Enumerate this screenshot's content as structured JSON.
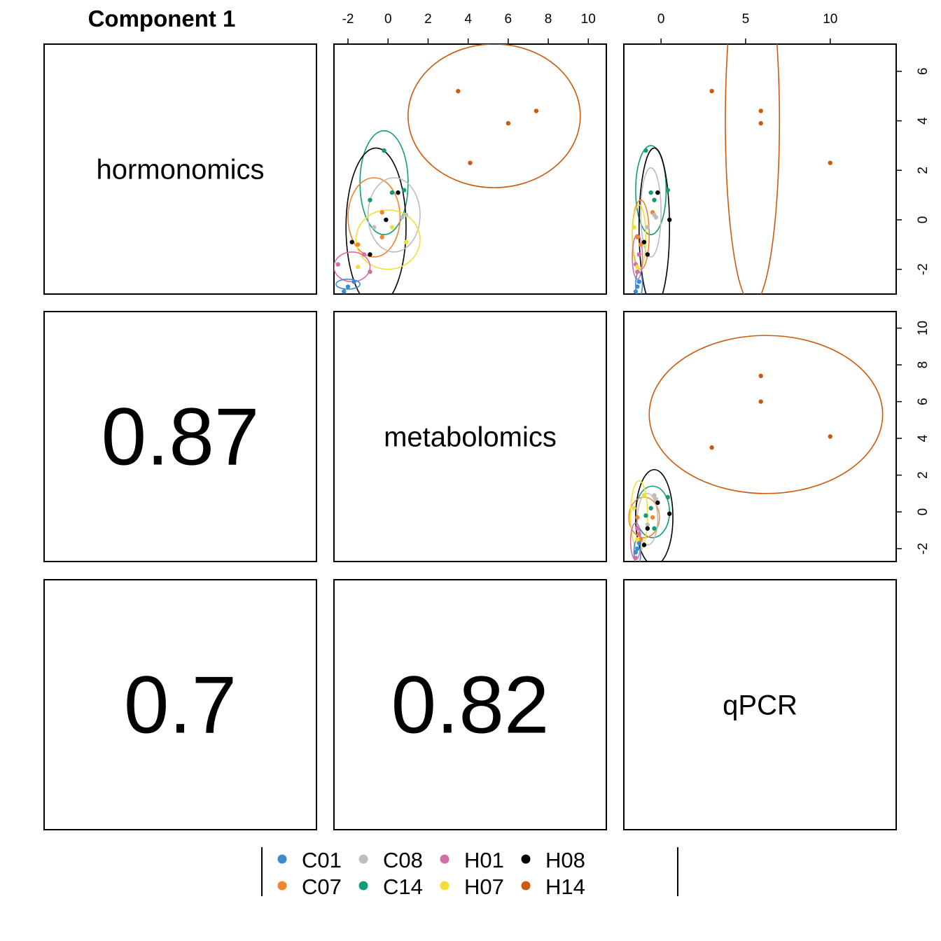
{
  "title": "Component 1",
  "colors": {
    "C01": "#3B8BD0",
    "C07": "#F0852D",
    "C08": "#BDBDBD",
    "C14": "#129C76",
    "H01": "#D36FA5",
    "H07": "#F1E033",
    "H08": "#000000",
    "H14": "#CC5A0E"
  },
  "chart_data": {
    "type": "scatter-matrix",
    "title": "Component 1",
    "variables": [
      "hormonomics",
      "metabolomics",
      "qPCR"
    ],
    "groups": [
      "C01",
      "C07",
      "C08",
      "C14",
      "H01",
      "H07",
      "H08",
      "H14"
    ],
    "correlations": [
      {
        "row": "metabolomics",
        "col": "hormonomics",
        "label": "0.87"
      },
      {
        "row": "qPCR",
        "col": "hormonomics",
        "label": "0.7"
      },
      {
        "row": "qPCR",
        "col": "metabolomics",
        "label": "0.82"
      }
    ],
    "axes": {
      "top_x_ticks": {
        "metabolomics": [
          -2,
          0,
          2,
          4,
          6,
          8,
          10
        ],
        "qPCR": [
          0,
          5,
          10
        ]
      },
      "right_y_ticks": {
        "hormonomics": [
          -2,
          0,
          2,
          4,
          6
        ],
        "metabolomics": [
          -2,
          0,
          2,
          4,
          6,
          8,
          10
        ]
      },
      "limits": {
        "hormonomics": [
          -3.0,
          7.1
        ],
        "metabolomics": [
          -2.7,
          10.9
        ],
        "qPCR": [
          -2.2,
          13.9
        ]
      }
    },
    "points": {
      "C01": [
        {
          "hormonomics": -2.9,
          "metabolomics": -2.2,
          "qPCR": -1.5
        },
        {
          "hormonomics": -2.7,
          "metabolomics": -2.0,
          "qPCR": -1.4
        },
        {
          "hormonomics": -2.5,
          "metabolomics": -1.7,
          "qPCR": -1.3
        }
      ],
      "C07": [
        {
          "hormonomics": -1.0,
          "metabolomics": -1.5,
          "qPCR": -1.2
        },
        {
          "hormonomics": -0.7,
          "metabolomics": -0.3,
          "qPCR": -1.4
        },
        {
          "hormonomics": 0.3,
          "metabolomics": -0.3,
          "qPCR": -0.5
        }
      ],
      "C08": [
        {
          "hormonomics": -0.3,
          "metabolomics": -0.7,
          "qPCR": -0.8
        },
        {
          "hormonomics": 0.1,
          "metabolomics": 0.7,
          "qPCR": -0.3
        },
        {
          "hormonomics": 0.2,
          "metabolomics": 0.9,
          "qPCR": -0.4
        }
      ],
      "C14": [
        {
          "hormonomics": 2.8,
          "metabolomics": -0.2,
          "qPCR": -0.9
        },
        {
          "hormonomics": 1.1,
          "metabolomics": 0.2,
          "qPCR": -0.6
        },
        {
          "hormonomics": 1.2,
          "metabolomics": 0.8,
          "qPCR": 0.4
        },
        {
          "hormonomics": 0.8,
          "metabolomics": -0.9,
          "qPCR": -0.4
        }
      ],
      "H01": [
        {
          "hormonomics": -1.8,
          "metabolomics": -2.5,
          "qPCR": -1.5
        },
        {
          "hormonomics": -1.4,
          "metabolomics": -1.2,
          "qPCR": -1.3
        },
        {
          "hormonomics": -2.1,
          "metabolomics": -0.9,
          "qPCR": -1.4
        }
      ],
      "H07": [
        {
          "hormonomics": -0.9,
          "metabolomics": 0.9,
          "qPCR": -1.0
        },
        {
          "hormonomics": -1.9,
          "metabolomics": -1.5,
          "qPCR": -1.4
        },
        {
          "hormonomics": -0.3,
          "metabolomics": 0.2,
          "qPCR": -1.6
        }
      ],
      "H08": [
        {
          "hormonomics": -0.9,
          "metabolomics": -1.8,
          "qPCR": -1.0
        },
        {
          "hormonomics": -1.4,
          "metabolomics": -0.9,
          "qPCR": -0.8
        },
        {
          "hormonomics": 1.1,
          "metabolomics": 0.5,
          "qPCR": -0.2
        },
        {
          "hormonomics": 0.0,
          "metabolomics": -0.1,
          "qPCR": 0.5
        }
      ],
      "H14": [
        {
          "hormonomics": 5.2,
          "metabolomics": 3.5,
          "qPCR": 3.0
        },
        {
          "hormonomics": 4.4,
          "metabolomics": 7.4,
          "qPCR": 5.9
        },
        {
          "hormonomics": 3.9,
          "metabolomics": 6.0,
          "qPCR": 5.9
        },
        {
          "hormonomics": 2.3,
          "metabolomics": 4.1,
          "qPCR": 10.0
        }
      ]
    },
    "ellipses": {
      "hormonomics_vs_metabolomics": {
        "H14": {
          "cx": 5.3,
          "cy": 4.2,
          "rx": 4.3,
          "ry": 2.9
        },
        "C14": {
          "cx": -0.2,
          "cy": 1.5,
          "rx": 1.2,
          "ry": 2.1
        },
        "H08": {
          "cx": -0.6,
          "cy": -0.3,
          "rx": 1.5,
          "ry": 3.2
        },
        "C07": {
          "cx": -0.7,
          "cy": 0.1,
          "rx": 1.3,
          "ry": 1.6
        },
        "C08": {
          "cx": 0.3,
          "cy": 0.2,
          "rx": 1.3,
          "ry": 1.5
        },
        "H07": {
          "cx": 0.0,
          "cy": -0.8,
          "rx": 1.6,
          "ry": 1.2
        },
        "H01": {
          "cx": -1.8,
          "cy": -1.9,
          "rx": 0.9,
          "ry": 0.6
        },
        "C01": {
          "cx": -2.0,
          "cy": -2.6,
          "rx": 0.6,
          "ry": 0.2
        }
      },
      "hormonomics_vs_qPCR": {
        "H14": {
          "cx": 5.4,
          "cy": 4.0,
          "rx": 1.6,
          "ry": 7.4
        },
        "C14": {
          "cx": -0.6,
          "cy": 1.2,
          "rx": 0.9,
          "ry": 1.8
        },
        "H08": {
          "cx": -0.4,
          "cy": -0.3,
          "rx": 0.9,
          "ry": 3.2
        },
        "C08": {
          "cx": -0.6,
          "cy": 0.3,
          "rx": 0.6,
          "ry": 1.8
        },
        "C07": {
          "cx": -1.2,
          "cy": -0.6,
          "rx": 0.5,
          "ry": 1.4
        },
        "H07": {
          "cx": -1.3,
          "cy": -0.7,
          "rx": 0.4,
          "ry": 1.3
        },
        "H01": {
          "cx": -1.4,
          "cy": -1.5,
          "rx": 0.3,
          "ry": 0.9
        },
        "C01": {
          "cx": -1.3,
          "cy": -2.6,
          "rx": 0.2,
          "ry": 0.5
        }
      },
      "metabolomics_vs_qPCR": {
        "H14": {
          "cx": 6.2,
          "cy": 5.3,
          "rx": 6.9,
          "ry": 4.3
        },
        "C14": {
          "cx": -0.5,
          "cy": 0.0,
          "rx": 1.0,
          "ry": 1.4
        },
        "H08": {
          "cx": -0.4,
          "cy": -0.3,
          "rx": 1.1,
          "ry": 2.6
        },
        "C07": {
          "cx": -1.0,
          "cy": -0.3,
          "rx": 0.9,
          "ry": 1.1
        },
        "C08": {
          "cx": -0.8,
          "cy": -0.4,
          "rx": 0.6,
          "ry": 1.4
        },
        "H07": {
          "cx": -1.3,
          "cy": -0.2,
          "rx": 0.5,
          "ry": 1.9
        },
        "H01": {
          "cx": -1.5,
          "cy": -1.6,
          "rx": 0.3,
          "ry": 1.0
        },
        "C01": {
          "cx": -1.4,
          "cy": -2.2,
          "rx": 0.2,
          "ry": 0.7
        }
      }
    },
    "legend": {
      "position": "bottom",
      "entries": [
        [
          "C01",
          "C08",
          "H01",
          "H08"
        ],
        [
          "C07",
          "C14",
          "H07",
          "H14"
        ]
      ]
    }
  }
}
